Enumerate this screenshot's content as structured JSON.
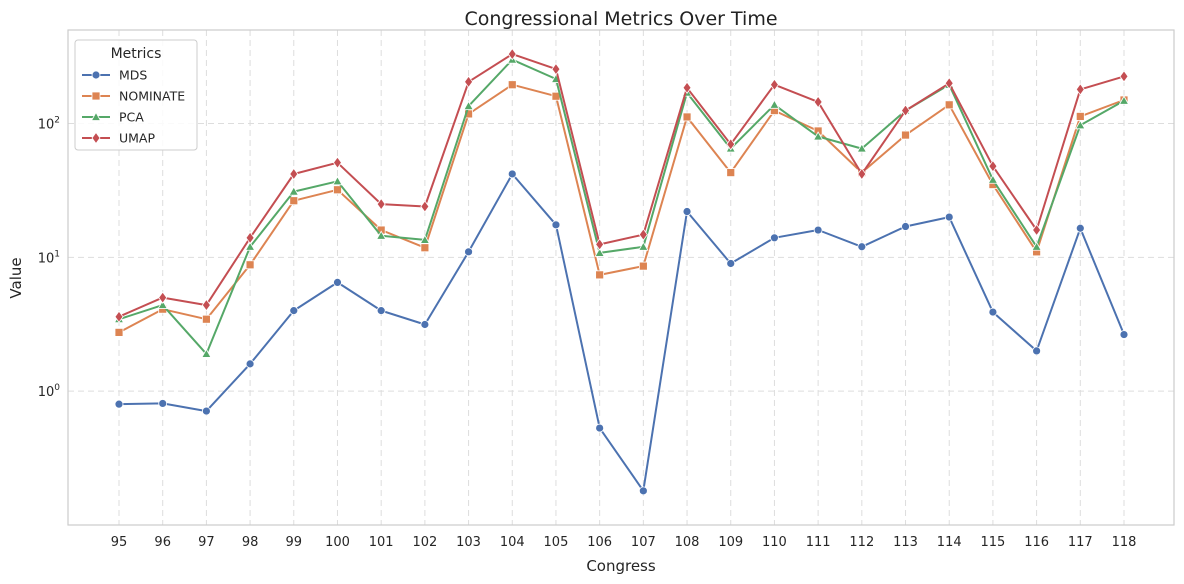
{
  "chart_data": {
    "type": "line",
    "title": "Congressional Metrics Over Time",
    "xlabel": "Congress",
    "ylabel": "Value",
    "yscale": "log",
    "ylim": [
      0.1,
      500
    ],
    "y_ticks": [
      {
        "value": 1,
        "base": "10",
        "exp": "0"
      },
      {
        "value": 10,
        "base": "10",
        "exp": "1"
      },
      {
        "value": 100,
        "base": "10",
        "exp": "2"
      }
    ],
    "grid": true,
    "legend": {
      "title": "Metrics",
      "position": "top-left"
    },
    "x": [
      "95",
      "96",
      "97",
      "98",
      "99",
      "100",
      "101",
      "102",
      "103",
      "104",
      "105",
      "106",
      "107",
      "108",
      "109",
      "110",
      "111",
      "112",
      "113",
      "114",
      "115",
      "116",
      "117",
      "118"
    ],
    "series": [
      {
        "name": "MDS",
        "color": "#4c72b0",
        "marker": "circle",
        "values": [
          0.8,
          0.81,
          0.71,
          1.6,
          4.0,
          6.5,
          4.0,
          3.15,
          11.0,
          42.0,
          17.5,
          0.53,
          0.18,
          22.0,
          9.0,
          14.0,
          16.0,
          12.0,
          17.0,
          20.0,
          3.9,
          2.0,
          16.5,
          2.65
        ]
      },
      {
        "name": "NOMINATE",
        "color": "#dd8452",
        "marker": "square",
        "values": [
          2.75,
          4.1,
          3.45,
          8.8,
          26.5,
          32.0,
          16.0,
          11.8,
          118.0,
          195.0,
          160.0,
          7.4,
          8.6,
          112.0,
          43.0,
          125.0,
          88.0,
          43.0,
          82.0,
          138.0,
          35.0,
          11.0,
          113.0,
          150.0
        ]
      },
      {
        "name": "PCA",
        "color": "#55a868",
        "marker": "triangle",
        "values": [
          3.45,
          4.4,
          1.9,
          12.0,
          31.0,
          37.0,
          14.5,
          13.5,
          135.0,
          300.0,
          215.0,
          10.8,
          12.0,
          170.0,
          65.0,
          138.0,
          80.0,
          65.0,
          125.0,
          195.0,
          38.0,
          12.0,
          97.0,
          148.0
        ]
      },
      {
        "name": "UMAP",
        "color": "#c44e52",
        "marker": "diamond",
        "values": [
          3.6,
          5.0,
          4.4,
          14.0,
          42.0,
          51.0,
          25.0,
          24.0,
          205.0,
          330.0,
          255.0,
          12.5,
          14.8,
          185.0,
          70.0,
          195.0,
          145.0,
          42.0,
          125.0,
          200.0,
          48.0,
          16.0,
          180.0,
          225.0
        ]
      }
    ]
  }
}
